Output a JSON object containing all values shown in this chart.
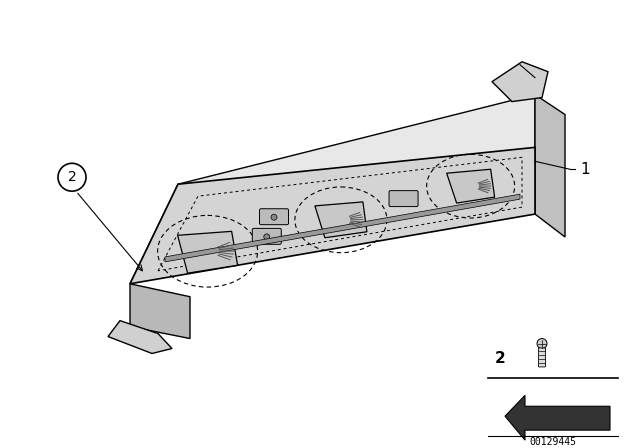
{
  "background_color": "#ffffff",
  "image_number": "00129445",
  "label1_text": "1",
  "label2_text": "2",
  "line_color": "#000000",
  "dark_color": "#333333",
  "panel_face_color": "#d4d4d4",
  "panel_top_color": "#e8e8e8",
  "panel_right_color": "#c0c0c0",
  "panel_bottom_color": "#b8b8b8",
  "knob_color": "#c8c8c8",
  "button_color": "#bbbbbb"
}
